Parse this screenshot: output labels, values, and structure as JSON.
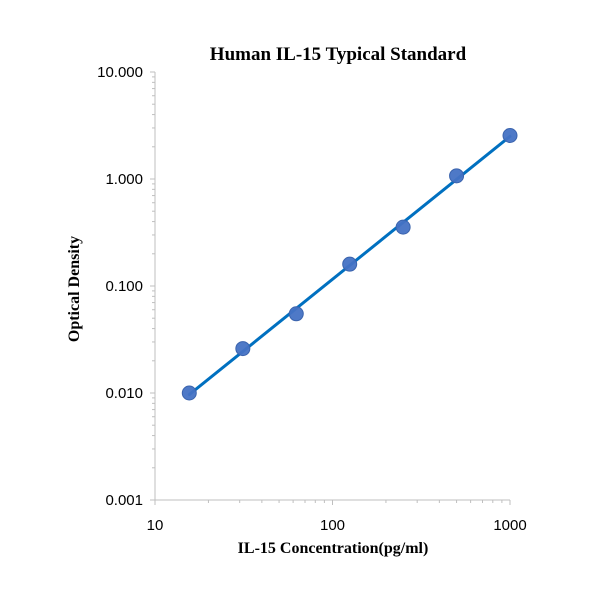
{
  "chart_data": {
    "type": "scatter",
    "title": "Human IL-15 Typical Standard",
    "xlabel": "IL-15 Concentration(pg/ml)",
    "ylabel": "Optical Density",
    "x_scale": "log",
    "y_scale": "log",
    "xlim": [
      10,
      1000
    ],
    "ylim": [
      0.001,
      10
    ],
    "x_ticks": [
      "10",
      "100",
      "1000"
    ],
    "y_ticks": [
      "10.000",
      "1.000",
      "0.100",
      "0.010",
      "0.001"
    ],
    "grid": false,
    "legend": "none",
    "series": [
      {
        "x": [
          15.6,
          31.25,
          62.5,
          125,
          250,
          500,
          1000
        ],
        "y": [
          0.01,
          0.026,
          0.055,
          0.16,
          0.355,
          1.07,
          2.55
        ],
        "marker_color": "#4472C4",
        "trendline": true,
        "trendline_type": "power",
        "trendline_color": "#0070C0"
      }
    ]
  }
}
